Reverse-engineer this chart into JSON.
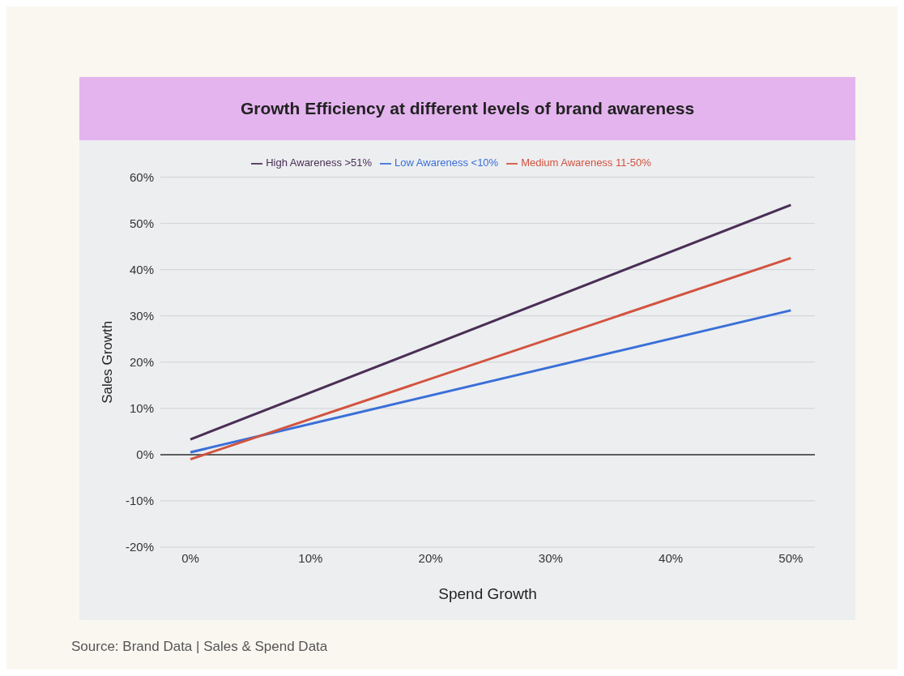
{
  "chart_data": {
    "type": "line",
    "title": "Growth Efficiency at different levels of brand awareness",
    "xlabel": "Spend Growth",
    "ylabel": "Sales Growth",
    "x": [
      0,
      50
    ],
    "series": [
      {
        "name": "Low Awareness <10%",
        "color": "#3a6fd8",
        "values": [
          0.5,
          31.2
        ]
      },
      {
        "name": "Medium Awareness 11-50%",
        "color": "#d2533e",
        "values": [
          -1,
          42.5
        ]
      },
      {
        "name": "High Awareness >51%",
        "color": "#4a2e55",
        "values": [
          3.3,
          54
        ]
      }
    ],
    "xlim": [
      -2.5,
      52
    ],
    "xticks": [
      {
        "value": 0,
        "label": "0%"
      },
      {
        "value": 10,
        "label": "10%"
      },
      {
        "value": 20,
        "label": "20%"
      },
      {
        "value": 30,
        "label": "30%"
      },
      {
        "value": 40,
        "label": "40%"
      },
      {
        "value": 50,
        "label": "50%"
      }
    ],
    "ylim": [
      -20,
      60
    ],
    "yticks": [
      {
        "value": -20,
        "label": "-20%"
      },
      {
        "value": -10,
        "label": "-10%"
      },
      {
        "value": 0,
        "label": "0%"
      },
      {
        "value": 10,
        "label": "10%"
      },
      {
        "value": 20,
        "label": "20%"
      },
      {
        "value": 30,
        "label": "30%"
      },
      {
        "value": 40,
        "label": "40%"
      },
      {
        "value": 50,
        "label": "50%"
      },
      {
        "value": 60,
        "label": "60%"
      }
    ],
    "ref_lines": [
      {
        "axis": "y",
        "value": 0,
        "color": "#333333"
      }
    ],
    "grid": "y",
    "legend": "top",
    "annotations": [
      "Source: Brand Data | Sales & Spend Data"
    ]
  }
}
